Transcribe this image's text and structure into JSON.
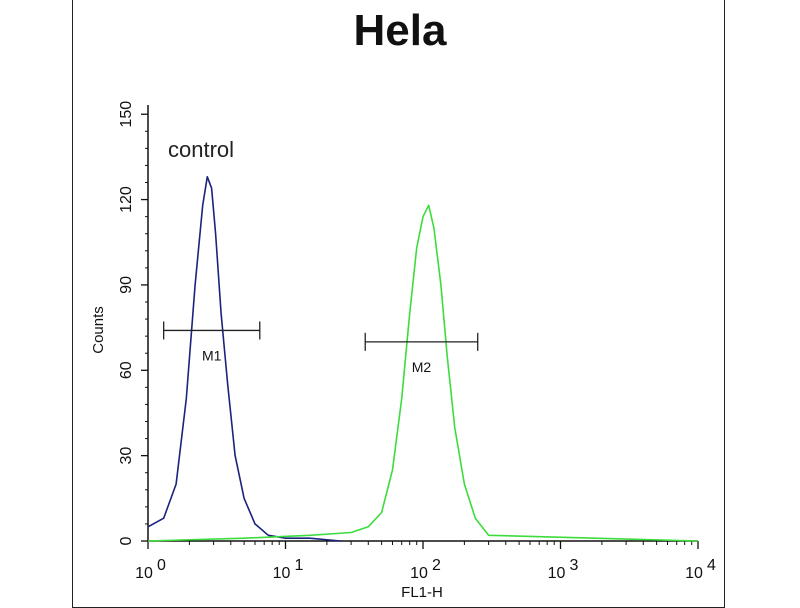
{
  "chart_data": {
    "type": "line",
    "title": "Hela",
    "xlabel": "FL1-H",
    "ylabel": "Counts",
    "x_scale": "log",
    "xlim": [
      1,
      10000
    ],
    "ylim": [
      0,
      155
    ],
    "x_ticks": [
      {
        "value": 1,
        "base": "10",
        "exp": "0"
      },
      {
        "value": 10,
        "base": "10",
        "exp": "1"
      },
      {
        "value": 100,
        "base": "10",
        "exp": "2"
      },
      {
        "value": 1000,
        "base": "10",
        "exp": "3"
      },
      {
        "value": 10000,
        "base": "10",
        "exp": "4"
      }
    ],
    "y_ticks": [
      0,
      30,
      60,
      90,
      120,
      150
    ],
    "annotation": "control",
    "series": [
      {
        "name": "control",
        "color": "#1a237e",
        "x": [
          1,
          1.3,
          1.6,
          1.9,
          2.2,
          2.5,
          2.7,
          2.9,
          3.1,
          3.4,
          3.8,
          4.3,
          5.0,
          6.0,
          7.5,
          10,
          15,
          25
        ],
        "y": [
          5,
          8,
          20,
          50,
          90,
          118,
          128,
          124,
          108,
          80,
          55,
          30,
          15,
          6,
          2,
          1,
          1,
          0
        ]
      },
      {
        "name": "",
        "color": "#3ddc3d",
        "x": [
          1,
          5,
          15,
          30,
          40,
          50,
          60,
          70,
          80,
          90,
          100,
          110,
          120,
          135,
          150,
          170,
          200,
          240,
          300,
          10000
        ],
        "y": [
          0,
          1,
          2,
          3,
          5,
          10,
          25,
          50,
          80,
          103,
          114,
          118,
          110,
          90,
          65,
          40,
          20,
          8,
          2,
          0
        ]
      }
    ],
    "markers": [
      {
        "label": "M1",
        "x_start": 1.3,
        "x_end": 6.5,
        "y": 74
      },
      {
        "label": "M2",
        "x_start": 38,
        "x_end": 250,
        "y": 70
      }
    ],
    "grid": false,
    "legend": "none"
  }
}
